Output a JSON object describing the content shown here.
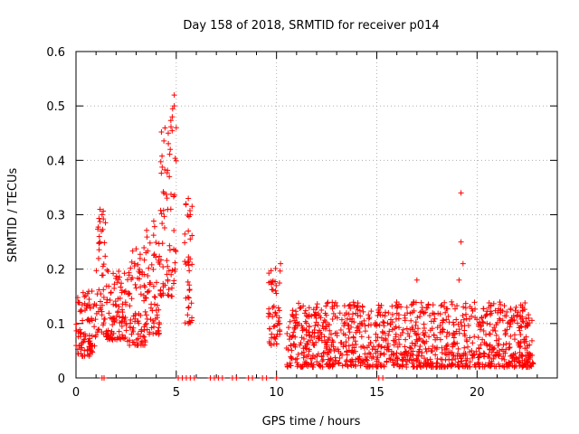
{
  "chart_data": {
    "type": "scatter",
    "title": "Day 158 of 2018, SRMTID for receiver p014",
    "xlabel": "GPS time / hours",
    "ylabel": "SRMTID / TECUs",
    "xlim": [
      0,
      24
    ],
    "ylim": [
      0,
      0.6
    ],
    "xticks": [
      0,
      5,
      10,
      15,
      20
    ],
    "yticks": [
      0,
      0.1,
      0.2,
      0.3,
      0.4,
      0.5,
      0.6
    ],
    "xtick_labels": [
      "0",
      "5",
      "10",
      "15",
      "20"
    ],
    "ytick_labels": [
      "0",
      "0.1",
      "0.2",
      "0.3",
      "0.4",
      "0.5",
      "0.6"
    ],
    "grid": true,
    "marker": "+",
    "color": "#ff0000",
    "series": [
      {
        "name": "SRMTID",
        "segments": [
          {
            "x_start": 0.0,
            "x_end": 1.0,
            "y_min": 0.04,
            "y_max": 0.16
          },
          {
            "x_start": 1.0,
            "x_end": 1.5,
            "y_min": 0.08,
            "y_max": 0.31
          },
          {
            "x_start": 1.5,
            "x_end": 2.5,
            "y_min": 0.07,
            "y_max": 0.2
          },
          {
            "x_start": 2.5,
            "x_end": 3.5,
            "y_min": 0.06,
            "y_max": 0.24
          },
          {
            "x_start": 3.5,
            "x_end": 4.2,
            "y_min": 0.08,
            "y_max": 0.3
          },
          {
            "x_start": 4.2,
            "x_end": 5.0,
            "y_min": 0.15,
            "y_max": 0.52
          },
          {
            "x_start": 5.4,
            "x_end": 5.8,
            "y_min": 0.1,
            "y_max": 0.33
          },
          {
            "x_start": 9.6,
            "x_end": 10.2,
            "y_min": 0.06,
            "y_max": 0.21
          },
          {
            "x_start": 10.5,
            "x_end": 22.8,
            "y_min": 0.02,
            "y_max": 0.14
          }
        ],
        "highlights": [
          {
            "x": 19.2,
            "y": 0.34
          },
          {
            "x": 19.2,
            "y": 0.25
          },
          {
            "x": 19.3,
            "y": 0.21
          },
          {
            "x": 19.1,
            "y": 0.18
          },
          {
            "x": 17.0,
            "y": 0.18
          },
          {
            "x": 10.2,
            "y": 0.21
          },
          {
            "x": 4.9,
            "y": 0.52
          },
          {
            "x": 4.9,
            "y": 0.5
          },
          {
            "x": 4.8,
            "y": 0.48
          },
          {
            "x": 5.0,
            "y": 0.46
          },
          {
            "x": 4.6,
            "y": 0.45
          },
          {
            "x": 4.7,
            "y": 0.42
          },
          {
            "x": 1.2,
            "y": 0.31
          },
          {
            "x": 1.3,
            "y": 0.3
          },
          {
            "x": 1.2,
            "y": 0.25
          },
          {
            "x": 5.6,
            "y": 0.33
          },
          {
            "x": 5.7,
            "y": 0.3
          },
          {
            "x": 5.6,
            "y": 0.27
          },
          {
            "x": 5.6,
            "y": 0.1
          }
        ],
        "zero_points_x": [
          1.3,
          1.4,
          5.1,
          5.3,
          5.5,
          5.7,
          5.9,
          6.7,
          6.9,
          7.1,
          7.3,
          7.8,
          8.0,
          8.6,
          8.8,
          9.3,
          9.5,
          10.0,
          15.1,
          15.3
        ]
      }
    ]
  }
}
